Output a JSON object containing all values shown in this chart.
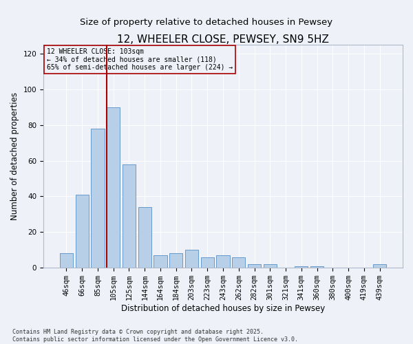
{
  "title": "12, WHEELER CLOSE, PEWSEY, SN9 5HZ",
  "subtitle": "Size of property relative to detached houses in Pewsey",
  "xlabel": "Distribution of detached houses by size in Pewsey",
  "ylabel": "Number of detached properties",
  "categories": [
    "46sqm",
    "66sqm",
    "85sqm",
    "105sqm",
    "125sqm",
    "144sqm",
    "164sqm",
    "184sqm",
    "203sqm",
    "223sqm",
    "243sqm",
    "262sqm",
    "282sqm",
    "301sqm",
    "321sqm",
    "341sqm",
    "360sqm",
    "380sqm",
    "400sqm",
    "419sqm",
    "439sqm"
  ],
  "values": [
    8,
    41,
    78,
    90,
    58,
    34,
    7,
    8,
    10,
    6,
    7,
    6,
    2,
    2,
    0,
    1,
    1,
    0,
    0,
    0,
    2
  ],
  "bar_color": "#b8cfe8",
  "bar_edge_color": "#6699cc",
  "highlight_line_color": "#aa0000",
  "annotation_text": "12 WHEELER CLOSE: 103sqm\n← 34% of detached houses are smaller (118)\n65% of semi-detached houses are larger (224) →",
  "annotation_box_color": "#aa0000",
  "ylim": [
    0,
    125
  ],
  "yticks": [
    0,
    20,
    40,
    60,
    80,
    100,
    120
  ],
  "background_color": "#eef2f8",
  "grid_color": "#ffffff",
  "title_fontsize": 11,
  "subtitle_fontsize": 9.5,
  "label_fontsize": 8.5,
  "tick_fontsize": 7.5,
  "footer_text": "Contains HM Land Registry data © Crown copyright and database right 2025.\nContains public sector information licensed under the Open Government Licence v3.0."
}
